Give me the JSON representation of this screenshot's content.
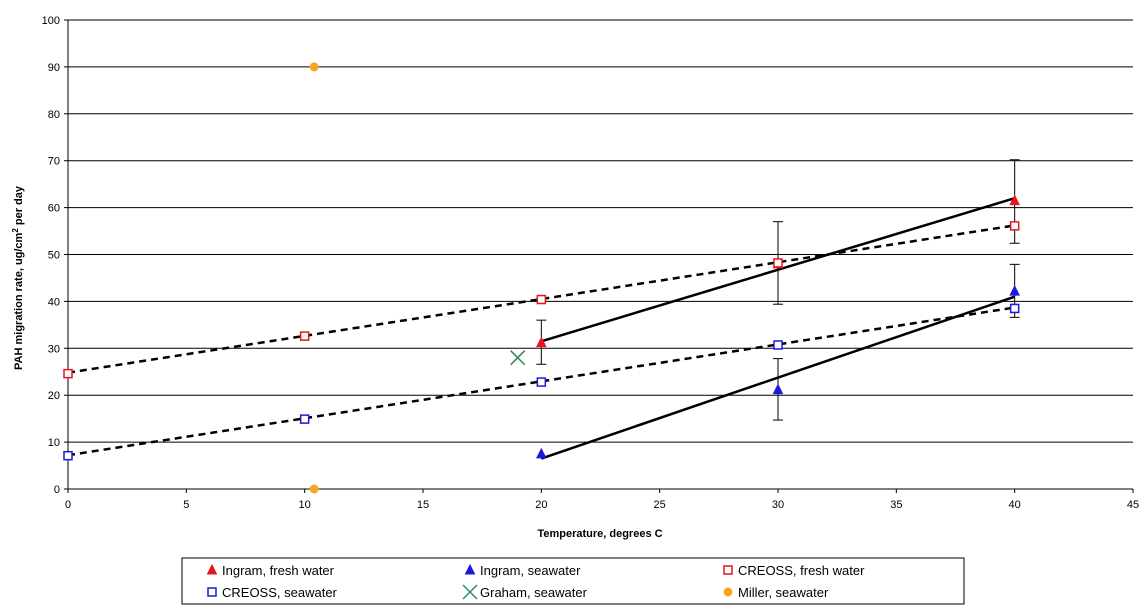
{
  "chart_data": {
    "type": "scatter",
    "title": "",
    "xlabel": "Temperature, degrees C",
    "ylabel_parts": [
      "PAH migration rate, ug/cm",
      "2",
      " per day"
    ],
    "xlim": [
      0,
      45
    ],
    "ylim": [
      0,
      100
    ],
    "xticks": [
      0,
      5,
      10,
      15,
      20,
      25,
      30,
      35,
      40,
      45
    ],
    "yticks": [
      0,
      10,
      20,
      30,
      40,
      50,
      60,
      70,
      80,
      90,
      100
    ],
    "grid": "horizontal",
    "legend_position": "bottom",
    "series": [
      {
        "name": "Ingram, fresh water",
        "marker": "triangle-filled",
        "color": "#e8141e",
        "points": [
          {
            "x": 20,
            "y": 31.2,
            "err_low": 26.6,
            "err_high": 36
          },
          {
            "x": 30,
            "y": 48,
            "err_low": 39.4,
            "err_high": 57
          },
          {
            "x": 40,
            "y": 61.5,
            "err_low": 52.4,
            "err_high": 70.2
          }
        ]
      },
      {
        "name": "Ingram, seawater",
        "marker": "triangle-filled",
        "color": "#1a1adc",
        "points": [
          {
            "x": 20,
            "y": 7.5
          },
          {
            "x": 30,
            "y": 21.2,
            "err_low": 14.7,
            "err_high": 27.8
          },
          {
            "x": 40,
            "y": 42.2,
            "err_low": 36.6,
            "err_high": 47.9
          }
        ]
      },
      {
        "name": "CREOSS, fresh water",
        "marker": "square-open",
        "color": "#e8141e",
        "points": [
          {
            "x": 0,
            "y": 24.6
          },
          {
            "x": 10,
            "y": 32.6
          },
          {
            "x": 20,
            "y": 40.4
          },
          {
            "x": 30,
            "y": 48.2
          },
          {
            "x": 40,
            "y": 56.1
          }
        ]
      },
      {
        "name": "CREOSS, seawater",
        "marker": "square-open",
        "color": "#1a1adc",
        "points": [
          {
            "x": 0,
            "y": 7.1
          },
          {
            "x": 10,
            "y": 14.9
          },
          {
            "x": 20,
            "y": 22.8
          },
          {
            "x": 30,
            "y": 30.7
          },
          {
            "x": 40,
            "y": 38.5
          }
        ]
      },
      {
        "name": "Graham, seawater",
        "marker": "x",
        "color": "#2e8b57",
        "points": [
          {
            "x": 19,
            "y": 28
          }
        ]
      },
      {
        "name": "Miller, seawater",
        "marker": "circle-filled",
        "color": "#f5a623",
        "points": [
          {
            "x": 10.4,
            "y": 90
          },
          {
            "x": 10.4,
            "y": 0
          }
        ]
      }
    ],
    "trendlines": [
      {
        "style": "solid",
        "from": [
          20,
          31.5
        ],
        "to": [
          40,
          62
        ]
      },
      {
        "style": "solid",
        "from": [
          20,
          6.5
        ],
        "to": [
          40,
          41
        ]
      },
      {
        "style": "dashed",
        "from": [
          0,
          24.8
        ],
        "to": [
          40,
          56.2
        ]
      },
      {
        "style": "dashed",
        "from": [
          0,
          7.2
        ],
        "to": [
          40,
          38.7
        ]
      }
    ]
  }
}
